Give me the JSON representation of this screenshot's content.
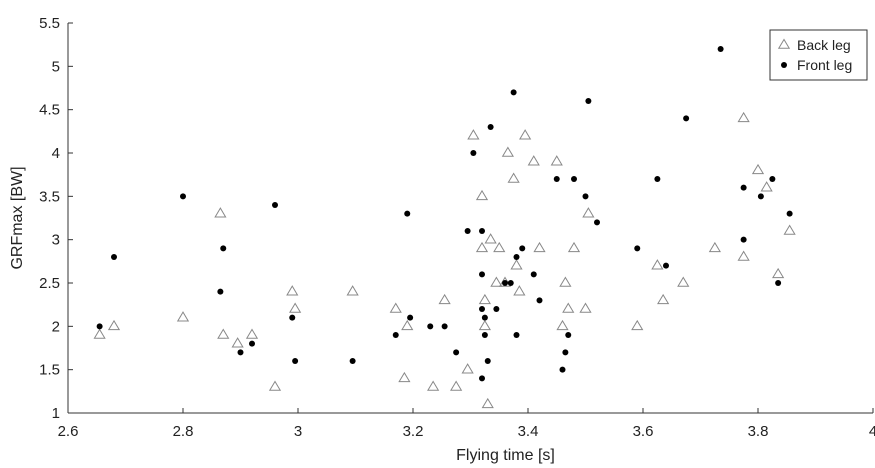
{
  "chart_data": {
    "type": "scatter",
    "title": "",
    "xlabel": "Flying time [s]",
    "ylabel": "GRFmax [BW]",
    "xlim": [
      2.6,
      4
    ],
    "ylim": [
      1,
      5.5
    ],
    "xticks": [
      "2.6",
      "2.8",
      "3",
      "3.2",
      "3.4",
      "3.6",
      "3.8",
      "4"
    ],
    "yticks": [
      "1",
      "1.5",
      "2",
      "2.5",
      "3",
      "3.5",
      "4",
      "4.5",
      "5",
      "5.5"
    ],
    "grid": false,
    "legend_position": "top-right",
    "series": [
      {
        "name": "Back leg",
        "marker": "triangle-open",
        "color": "#888888",
        "points": [
          [
            2.655,
            1.9
          ],
          [
            2.68,
            2.0
          ],
          [
            2.8,
            2.1
          ],
          [
            2.865,
            3.3
          ],
          [
            2.87,
            1.9
          ],
          [
            2.895,
            1.8
          ],
          [
            2.92,
            1.9
          ],
          [
            2.96,
            1.3
          ],
          [
            2.99,
            2.4
          ],
          [
            2.995,
            2.2
          ],
          [
            3.095,
            2.4
          ],
          [
            3.17,
            2.2
          ],
          [
            3.185,
            1.4
          ],
          [
            3.19,
            2.0
          ],
          [
            3.235,
            1.3
          ],
          [
            3.255,
            2.3
          ],
          [
            3.275,
            1.3
          ],
          [
            3.295,
            1.5
          ],
          [
            3.305,
            4.2
          ],
          [
            3.32,
            3.5
          ],
          [
            3.32,
            2.9
          ],
          [
            3.325,
            2.3
          ],
          [
            3.325,
            2.0
          ],
          [
            3.33,
            1.1
          ],
          [
            3.335,
            3.0
          ],
          [
            3.345,
            2.5
          ],
          [
            3.35,
            2.9
          ],
          [
            3.36,
            2.5
          ],
          [
            3.365,
            4.0
          ],
          [
            3.375,
            3.7
          ],
          [
            3.38,
            2.7
          ],
          [
            3.385,
            2.4
          ],
          [
            3.395,
            4.2
          ],
          [
            3.41,
            3.9
          ],
          [
            3.42,
            2.9
          ],
          [
            3.45,
            3.9
          ],
          [
            3.46,
            2.0
          ],
          [
            3.465,
            2.5
          ],
          [
            3.47,
            2.2
          ],
          [
            3.48,
            2.9
          ],
          [
            3.5,
            2.2
          ],
          [
            3.505,
            3.3
          ],
          [
            3.59,
            2.0
          ],
          [
            3.625,
            2.7
          ],
          [
            3.635,
            2.3
          ],
          [
            3.67,
            2.5
          ],
          [
            3.725,
            2.9
          ],
          [
            3.775,
            4.4
          ],
          [
            3.775,
            2.8
          ],
          [
            3.8,
            3.8
          ],
          [
            3.815,
            3.6
          ],
          [
            3.835,
            2.6
          ],
          [
            3.855,
            3.1
          ]
        ]
      },
      {
        "name": "Front leg",
        "marker": "dot",
        "color": "#000000",
        "points": [
          [
            2.655,
            2.0
          ],
          [
            2.68,
            2.8
          ],
          [
            2.8,
            3.5
          ],
          [
            2.865,
            2.4
          ],
          [
            2.87,
            2.9
          ],
          [
            2.9,
            1.7
          ],
          [
            2.92,
            1.8
          ],
          [
            2.96,
            3.4
          ],
          [
            2.99,
            2.1
          ],
          [
            2.995,
            1.6
          ],
          [
            3.095,
            1.6
          ],
          [
            3.17,
            1.9
          ],
          [
            3.19,
            3.3
          ],
          [
            3.195,
            2.1
          ],
          [
            3.23,
            2.0
          ],
          [
            3.255,
            2.0
          ],
          [
            3.275,
            1.7
          ],
          [
            3.295,
            3.1
          ],
          [
            3.305,
            4.0
          ],
          [
            3.32,
            3.1
          ],
          [
            3.32,
            2.6
          ],
          [
            3.32,
            2.2
          ],
          [
            3.325,
            2.1
          ],
          [
            3.325,
            1.9
          ],
          [
            3.32,
            1.4
          ],
          [
            3.33,
            1.6
          ],
          [
            3.335,
            4.3
          ],
          [
            3.345,
            2.2
          ],
          [
            3.36,
            2.5
          ],
          [
            3.37,
            2.5
          ],
          [
            3.375,
            4.7
          ],
          [
            3.38,
            2.8
          ],
          [
            3.38,
            1.9
          ],
          [
            3.39,
            2.9
          ],
          [
            3.41,
            2.6
          ],
          [
            3.42,
            2.3
          ],
          [
            3.45,
            3.7
          ],
          [
            3.46,
            1.5
          ],
          [
            3.465,
            1.7
          ],
          [
            3.47,
            1.9
          ],
          [
            3.48,
            3.7
          ],
          [
            3.5,
            3.5
          ],
          [
            3.505,
            4.6
          ],
          [
            3.52,
            3.2
          ],
          [
            3.59,
            2.9
          ],
          [
            3.625,
            3.7
          ],
          [
            3.64,
            2.7
          ],
          [
            3.675,
            4.4
          ],
          [
            3.735,
            5.2
          ],
          [
            3.775,
            3.6
          ],
          [
            3.775,
            3.0
          ],
          [
            3.805,
            3.5
          ],
          [
            3.825,
            3.7
          ],
          [
            3.835,
            2.5
          ],
          [
            3.855,
            3.3
          ]
        ]
      }
    ]
  }
}
